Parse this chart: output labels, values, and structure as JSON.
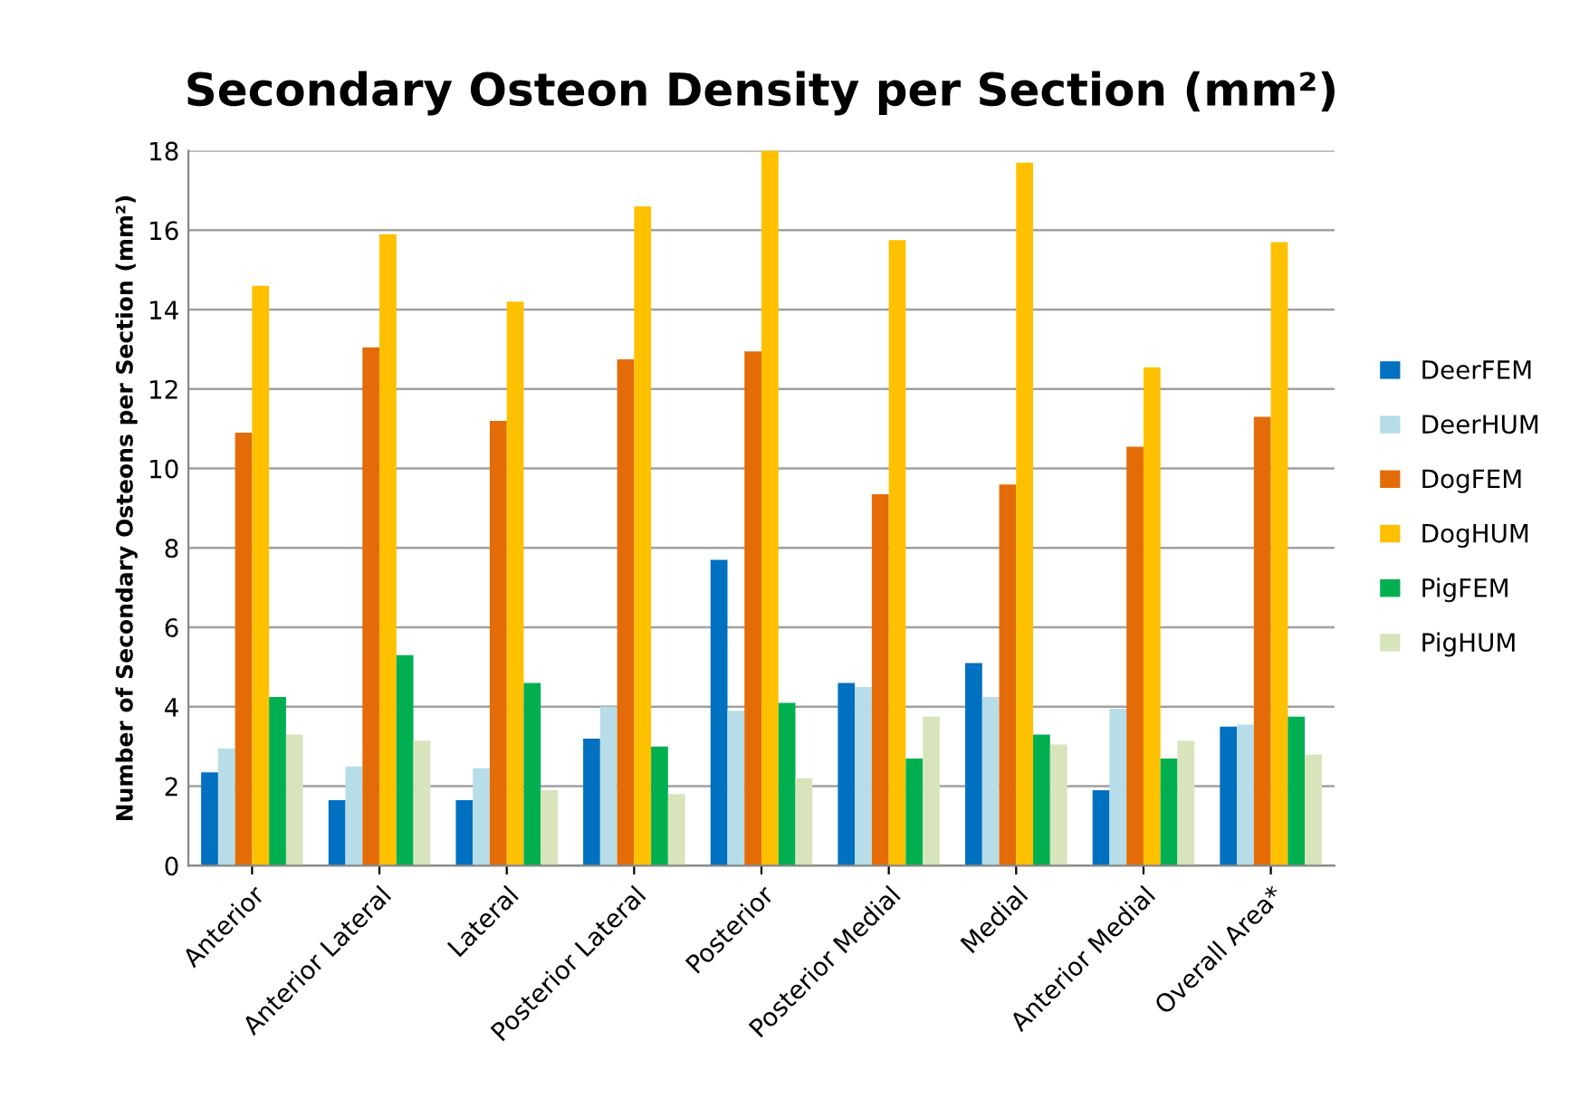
{
  "chart_data": {
    "type": "bar",
    "title": "Secondary Osteon Density per Section (mm²)",
    "ylabel": "Number of Secondary Osteons per Section (mm²)",
    "categories": [
      "Anterior",
      "Anterior Lateral",
      "Lateral",
      "Posterior Lateral",
      "Posterior",
      "Posterior Medial",
      "Medial",
      "Anterior Medial",
      "Overall Area*"
    ],
    "series": [
      {
        "name": "DeerFEM",
        "color": "#0070c0",
        "values": [
          2.35,
          1.65,
          1.65,
          3.2,
          7.7,
          4.6,
          5.1,
          1.9,
          3.5
        ]
      },
      {
        "name": "DeerHUM",
        "color": "#b7dde8",
        "values": [
          2.95,
          2.5,
          2.45,
          4.0,
          3.9,
          4.5,
          4.25,
          3.95,
          3.55
        ]
      },
      {
        "name": "DogFEM",
        "color": "#e36c09",
        "values": [
          10.9,
          13.05,
          11.2,
          12.75,
          12.95,
          9.35,
          9.6,
          10.55,
          11.3
        ]
      },
      {
        "name": "DogHUM",
        "color": "#ffc000",
        "values": [
          14.6,
          15.9,
          14.2,
          16.6,
          18.0,
          15.75,
          17.7,
          12.55,
          15.7
        ]
      },
      {
        "name": "PigFEM",
        "color": "#00b050",
        "values": [
          4.25,
          5.3,
          4.6,
          3.0,
          4.1,
          2.7,
          3.3,
          2.7,
          3.75
        ]
      },
      {
        "name": "PigHUM",
        "color": "#d7e4bc",
        "values": [
          3.3,
          3.15,
          1.9,
          1.8,
          2.2,
          3.75,
          3.05,
          3.15,
          2.8
        ]
      }
    ],
    "ylim": [
      0,
      18
    ],
    "yticks": [
      0,
      2,
      4,
      6,
      8,
      10,
      12,
      14,
      16,
      18
    ],
    "grid": "y",
    "legend": "right"
  }
}
